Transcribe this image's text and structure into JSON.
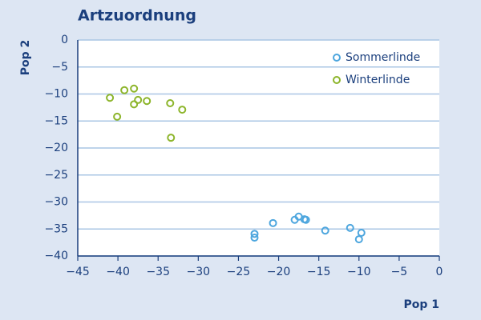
{
  "chart_data": {
    "type": "scatter",
    "title": "Artzuordnung",
    "x_label": "Pop 1",
    "y_label": "Pop 2",
    "xlim": [
      -45,
      0
    ],
    "ylim": [
      -40,
      0
    ],
    "xticks": [
      {
        "value": -45,
        "label": "−45"
      },
      {
        "value": -40,
        "label": "−40"
      },
      {
        "value": -35,
        "label": "−35"
      },
      {
        "value": -30,
        "label": "−30"
      },
      {
        "value": -25,
        "label": "−25"
      },
      {
        "value": -20,
        "label": "−20"
      },
      {
        "value": -15,
        "label": "−15"
      },
      {
        "value": -10,
        "label": "−10"
      },
      {
        "value": -5,
        "label": "−5"
      },
      0
    ],
    "yticks": [
      0,
      {
        "value": -5,
        "label": "−5"
      },
      {
        "value": -10,
        "label": "−10"
      },
      {
        "value": -15,
        "label": "−15"
      },
      {
        "value": -20,
        "label": "−20"
      },
      {
        "value": -25,
        "label": "−25"
      },
      {
        "value": -30,
        "label": "−30"
      },
      {
        "value": -35,
        "label": "−35"
      },
      {
        "value": -40,
        "label": "−40"
      }
    ],
    "grid": true,
    "legend": "top-right",
    "series": [
      {
        "name": "Sommerlinde",
        "color": "#4da6de",
        "x": [
          -23.0,
          -23.0,
          -20.7,
          -18.0,
          -17.5,
          -16.8,
          -16.6,
          -14.2,
          -11.1,
          -9.7,
          -10.0
        ],
        "values": [
          -35.9,
          -36.6,
          -33.9,
          -33.3,
          -32.7,
          -33.2,
          -33.3,
          -35.3,
          -34.8,
          -35.7,
          -36.9
        ]
      },
      {
        "name": "Winterlinde",
        "color": "#8db52b",
        "x": [
          -41.0,
          -39.2,
          -38.0,
          -38.0,
          -37.5,
          -36.4,
          -40.1,
          -33.5,
          -32.0,
          -33.4
        ],
        "values": [
          -10.7,
          -9.3,
          -9.0,
          -11.9,
          -11.1,
          -11.3,
          -14.2,
          -11.7,
          -12.9,
          -18.1
        ]
      }
    ]
  }
}
